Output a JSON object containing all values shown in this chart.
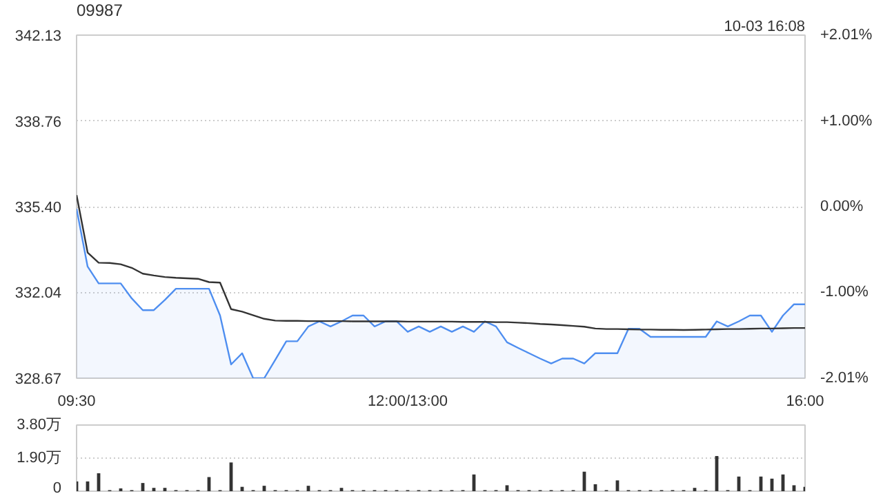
{
  "chart_data": [
    {
      "type": "line",
      "title": "09987",
      "annotations": [
        "10-03 16:08"
      ],
      "ylim": [
        328.67,
        342.13
      ],
      "y2lim": [
        -2.01,
        2.01
      ],
      "categories": [
        "09:30",
        null,
        null,
        null,
        null,
        null,
        null,
        null,
        null,
        null,
        null,
        null,
        null,
        null,
        null,
        null,
        null,
        null,
        null,
        null,
        null,
        null,
        null,
        null,
        null,
        null,
        null,
        null,
        null,
        null,
        "12:00/13:00",
        null,
        null,
        null,
        null,
        null,
        null,
        null,
        null,
        null,
        null,
        null,
        null,
        null,
        null,
        null,
        null,
        null,
        null,
        null,
        null,
        null,
        null,
        null,
        null,
        null,
        null,
        null,
        null,
        null,
        null,
        null,
        null,
        null,
        null,
        null,
        "16:00"
      ],
      "yticks": [
        328.67,
        332.04,
        {
          "value": 335.4,
          "label": "335.40"
        },
        338.76,
        342.13
      ],
      "y2ticks": [
        {
          "value": -2.01,
          "label": "-2.01%"
        },
        {
          "value": -1.0,
          "label": "-1.00%"
        },
        {
          "value": 0,
          "label": "0.00%"
        },
        {
          "value": 1.0,
          "label": "+1.00%"
        },
        {
          "value": 2.01,
          "label": "+2.01%"
        }
      ],
      "grid": "y",
      "series": [
        {
          "type": "area",
          "color": "#4e8ef0",
          "values": [
            335.32,
            333.05,
            332.39,
            332.39,
            332.39,
            331.8,
            331.34,
            331.34,
            331.74,
            332.18,
            332.18,
            332.18,
            332.18,
            331.13,
            329.21,
            329.65,
            328.67,
            328.67,
            329.39,
            330.12,
            330.12,
            330.7,
            330.9,
            330.7,
            330.9,
            331.13,
            331.13,
            330.7,
            330.9,
            330.9,
            330.49,
            330.7,
            330.49,
            330.7,
            330.49,
            330.7,
            330.49,
            330.9,
            330.7,
            330.08,
            329.86,
            329.65,
            329.44,
            329.25,
            329.44,
            329.44,
            329.25,
            329.65,
            329.65,
            329.65,
            330.61,
            330.61,
            330.29,
            330.29,
            330.29,
            330.29,
            330.29,
            330.29,
            330.9,
            330.7,
            330.9,
            331.13,
            331.13,
            330.49,
            331.13,
            331.57,
            331.57
          ]
        },
        {
          "type": "line",
          "color": "#333333",
          "values": [
            335.85,
            333.6,
            333.2,
            333.19,
            333.14,
            333.0,
            332.77,
            332.7,
            332.64,
            332.61,
            332.59,
            332.57,
            332.44,
            332.42,
            331.38,
            331.28,
            331.14,
            331.0,
            330.93,
            330.92,
            330.92,
            330.91,
            330.91,
            330.91,
            330.91,
            330.9,
            330.9,
            330.9,
            330.9,
            330.9,
            330.89,
            330.89,
            330.89,
            330.89,
            330.89,
            330.88,
            330.88,
            330.88,
            330.87,
            330.87,
            330.85,
            330.83,
            330.8,
            330.78,
            330.75,
            330.72,
            330.69,
            330.62,
            330.6,
            330.6,
            330.59,
            330.58,
            330.58,
            330.57,
            330.57,
            330.56,
            330.57,
            330.58,
            330.59,
            330.6,
            330.6,
            330.61,
            330.62,
            330.62,
            330.63,
            330.64,
            330.64
          ]
        }
      ]
    },
    {
      "type": "bar",
      "ylim": [
        0,
        3.8
      ],
      "yticks": [
        {
          "value": 0,
          "label": "0"
        },
        {
          "value": 1.9,
          "label": "1.90万"
        },
        {
          "value": 3.8,
          "label": "3.80万"
        }
      ],
      "grid": "y",
      "tick_labels": "y",
      "color": "#333333",
      "categories": [
        null,
        null,
        null,
        null,
        null,
        null,
        null,
        null,
        null,
        null,
        null,
        null,
        null,
        null,
        null,
        null,
        null,
        null,
        null,
        null,
        null,
        null,
        null,
        null,
        null,
        null,
        null,
        null,
        null,
        null,
        null,
        null,
        null,
        null,
        null,
        null,
        null,
        null,
        null,
        null,
        null,
        null,
        null,
        null,
        null,
        null,
        null,
        null,
        null,
        null,
        null,
        null,
        null,
        null,
        null,
        null,
        null,
        null,
        null,
        null,
        null,
        null,
        null,
        null,
        null,
        null,
        null
      ],
      "values": [
        0.56,
        0.56,
        1.03,
        0.06,
        0.16,
        0.06,
        0.47,
        0.19,
        0.19,
        0.06,
        0.06,
        0.06,
        0.81,
        0.06,
        1.65,
        0.25,
        0.06,
        0.31,
        0.06,
        0.06,
        0.06,
        0.31,
        0.06,
        0.06,
        0.19,
        0.06,
        0.06,
        0.06,
        0.06,
        0.06,
        0.06,
        0.06,
        0.06,
        0.06,
        0.06,
        0.06,
        0.96,
        0.06,
        0.06,
        0.34,
        0.06,
        0.06,
        0.06,
        0.06,
        0.06,
        0.06,
        1.12,
        0.4,
        0.06,
        0.62,
        0.06,
        0.06,
        0.06,
        0.06,
        0.06,
        0.06,
        0.19,
        0.06,
        2.02,
        0.06,
        0.84,
        0.06,
        0.84,
        0.72,
        0.96,
        0.34,
        0.25
      ]
    }
  ]
}
